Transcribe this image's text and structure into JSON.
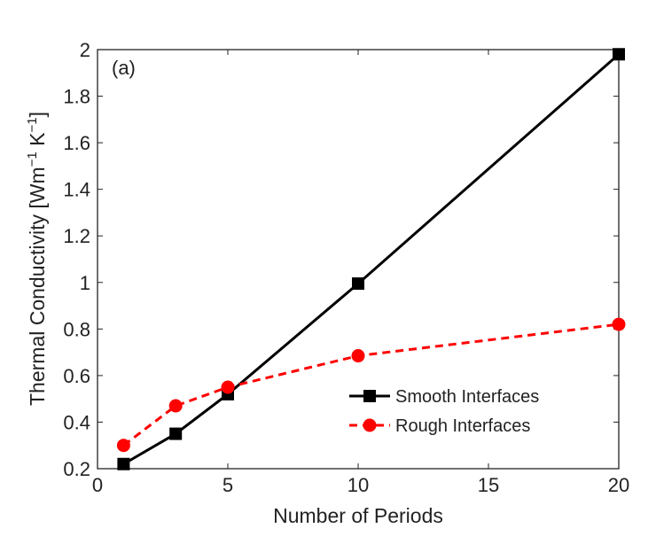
{
  "chart_data": {
    "type": "line",
    "annotation": "(a)",
    "xlabel": "Number of Periods",
    "ylabel": "Thermal Conductivity [Wm",
    "ylabel_parts": [
      "Thermal Conductivity [Wm",
      "−1",
      " K",
      "−1",
      "]"
    ],
    "xlim": [
      0,
      20
    ],
    "ylim": [
      0.2,
      2
    ],
    "xticks": [
      0,
      5,
      10,
      15,
      20
    ],
    "yticks": [
      0.2,
      0.4,
      0.6,
      0.8,
      1,
      1.2,
      1.4,
      1.6,
      1.8,
      2
    ],
    "grid": false,
    "legend_position": "lower-right",
    "series": [
      {
        "name": "Smooth Interfaces",
        "color": "#000000",
        "dash": "solid",
        "marker": "square",
        "x": [
          1,
          3,
          5,
          10,
          20
        ],
        "y": [
          0.22,
          0.35,
          0.52,
          0.995,
          1.98
        ]
      },
      {
        "name": "Rough Interfaces",
        "color": "#ff0000",
        "dash": "dashed",
        "marker": "circle",
        "x": [
          1,
          3,
          5,
          10,
          20
        ],
        "y": [
          0.3,
          0.47,
          0.55,
          0.685,
          0.82
        ]
      }
    ]
  }
}
